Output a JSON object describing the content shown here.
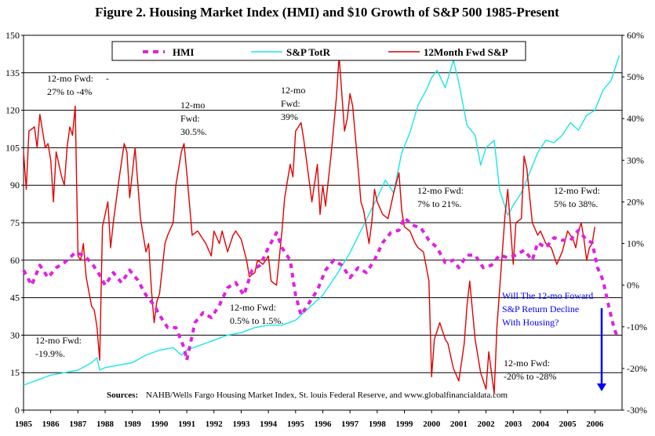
{
  "chart_data": {
    "type": "line",
    "title": "Figure 2.  Housing Market Index (HMI) and $10 Growth of S&P 500 1985-Present",
    "years": [
      "1985",
      "1986",
      "1987",
      "1988",
      "1989",
      "1990",
      "1991",
      "1992",
      "1993",
      "1994",
      "1995",
      "1996",
      "1997",
      "1998",
      "1999",
      "2000",
      "2001",
      "2002",
      "2003",
      "2004",
      "2005",
      "2006"
    ],
    "xlim": [
      1985,
      2007
    ],
    "y_left": {
      "ticks": [
        "0",
        "15",
        "30",
        "45",
        "60",
        "75",
        "90",
        "105",
        "120",
        "135",
        "150"
      ],
      "ylim": [
        0,
        150
      ]
    },
    "y_right": {
      "ticks": [
        "-30%",
        "-20%",
        "-10%",
        "0%",
        "10%",
        "20%",
        "30%",
        "40%",
        "50%",
        "60%"
      ],
      "ylim": [
        -30,
        60
      ]
    },
    "grid": "horizontal",
    "legend": {
      "placement": "top-center",
      "entries": [
        "HMI",
        "S&P TotR",
        "12Month Fwd S&P"
      ]
    },
    "series": [
      {
        "name": "HMI",
        "axis": "left",
        "color": "#e020e0",
        "style": "dashed",
        "points": [
          [
            1985.0,
            56
          ],
          [
            1985.3,
            50
          ],
          [
            1985.6,
            58
          ],
          [
            1985.9,
            53
          ],
          [
            1986.2,
            57
          ],
          [
            1986.5,
            59
          ],
          [
            1986.9,
            63
          ],
          [
            1987.2,
            62
          ],
          [
            1987.5,
            59
          ],
          [
            1987.8,
            54
          ],
          [
            1988.0,
            50
          ],
          [
            1988.3,
            55
          ],
          [
            1988.6,
            51
          ],
          [
            1988.9,
            56
          ],
          [
            1989.2,
            52
          ],
          [
            1989.5,
            46
          ],
          [
            1989.8,
            42
          ],
          [
            1990.0,
            38
          ],
          [
            1990.3,
            33
          ],
          [
            1990.6,
            33
          ],
          [
            1990.9,
            25
          ],
          [
            1991.0,
            20
          ],
          [
            1991.3,
            35
          ],
          [
            1991.6,
            39
          ],
          [
            1991.9,
            37
          ],
          [
            1992.2,
            42
          ],
          [
            1992.5,
            49
          ],
          [
            1992.8,
            51
          ],
          [
            1993.1,
            46
          ],
          [
            1993.4,
            56
          ],
          [
            1993.7,
            58
          ],
          [
            1994.0,
            65
          ],
          [
            1994.3,
            71
          ],
          [
            1994.5,
            65
          ],
          [
            1994.8,
            60
          ],
          [
            1995.0,
            46
          ],
          [
            1995.2,
            38
          ],
          [
            1995.5,
            43
          ],
          [
            1995.8,
            48
          ],
          [
            1996.1,
            56
          ],
          [
            1996.4,
            60
          ],
          [
            1996.7,
            58
          ],
          [
            1997.0,
            53
          ],
          [
            1997.3,
            57
          ],
          [
            1997.6,
            55
          ],
          [
            1997.9,
            60
          ],
          [
            1998.2,
            67
          ],
          [
            1998.5,
            71
          ],
          [
            1998.8,
            72
          ],
          [
            1999.0,
            77
          ],
          [
            1999.3,
            74
          ],
          [
            1999.6,
            73
          ],
          [
            1999.9,
            68
          ],
          [
            2000.2,
            65
          ],
          [
            2000.5,
            59
          ],
          [
            2000.8,
            60
          ],
          [
            2001.0,
            57
          ],
          [
            2001.3,
            62
          ],
          [
            2001.6,
            62
          ],
          [
            2001.9,
            57
          ],
          [
            2002.2,
            58
          ],
          [
            2002.5,
            62
          ],
          [
            2002.8,
            61
          ],
          [
            2003.1,
            62
          ],
          [
            2003.4,
            64
          ],
          [
            2003.7,
            60
          ],
          [
            2003.9,
            67
          ],
          [
            2004.2,
            65
          ],
          [
            2004.5,
            69
          ],
          [
            2004.8,
            68
          ],
          [
            2005.1,
            68
          ],
          [
            2005.4,
            72
          ],
          [
            2005.7,
            68
          ],
          [
            2005.9,
            67
          ],
          [
            2006.1,
            57
          ],
          [
            2006.3,
            52
          ],
          [
            2006.5,
            42
          ],
          [
            2006.7,
            33
          ],
          [
            2006.8,
            30
          ]
        ]
      },
      {
        "name": "S&P TotR",
        "axis": "left",
        "color": "#19e6e6",
        "style": "solid",
        "points": [
          [
            1985.0,
            10
          ],
          [
            1985.5,
            12
          ],
          [
            1986.0,
            14
          ],
          [
            1986.5,
            15
          ],
          [
            1987.0,
            16
          ],
          [
            1987.5,
            19
          ],
          [
            1987.7,
            21
          ],
          [
            1987.8,
            16
          ],
          [
            1988.0,
            17
          ],
          [
            1988.5,
            18
          ],
          [
            1989.0,
            19
          ],
          [
            1989.5,
            22
          ],
          [
            1990.0,
            24
          ],
          [
            1990.5,
            25
          ],
          [
            1990.8,
            22
          ],
          [
            1991.0,
            24
          ],
          [
            1991.5,
            26
          ],
          [
            1992.0,
            28
          ],
          [
            1992.5,
            30
          ],
          [
            1993.0,
            31
          ],
          [
            1993.5,
            33
          ],
          [
            1994.0,
            34
          ],
          [
            1994.5,
            34
          ],
          [
            1995.0,
            36
          ],
          [
            1995.5,
            41
          ],
          [
            1996.0,
            46
          ],
          [
            1996.5,
            54
          ],
          [
            1997.0,
            63
          ],
          [
            1997.5,
            74
          ],
          [
            1998.0,
            85
          ],
          [
            1998.3,
            92
          ],
          [
            1998.6,
            87
          ],
          [
            1998.9,
            103
          ],
          [
            1999.2,
            111
          ],
          [
            1999.5,
            122
          ],
          [
            1999.8,
            128
          ],
          [
            2000.0,
            133
          ],
          [
            2000.2,
            136
          ],
          [
            2000.5,
            129
          ],
          [
            2000.8,
            140
          ],
          [
            2001.0,
            131
          ],
          [
            2001.3,
            114
          ],
          [
            2001.6,
            110
          ],
          [
            2001.8,
            98
          ],
          [
            2002.0,
            105
          ],
          [
            2002.3,
            108
          ],
          [
            2002.5,
            88
          ],
          [
            2002.8,
            78
          ],
          [
            2003.0,
            82
          ],
          [
            2003.3,
            87
          ],
          [
            2003.6,
            95
          ],
          [
            2003.9,
            103
          ],
          [
            2004.2,
            108
          ],
          [
            2004.5,
            107
          ],
          [
            2004.8,
            110
          ],
          [
            2005.1,
            115
          ],
          [
            2005.4,
            112
          ],
          [
            2005.7,
            118
          ],
          [
            2006.0,
            120
          ],
          [
            2006.3,
            128
          ],
          [
            2006.6,
            132
          ],
          [
            2006.9,
            142
          ]
        ]
      },
      {
        "name": "12Month Fwd S&P",
        "axis": "right",
        "color": "#e00000",
        "style": "solid",
        "points": [
          [
            1985.0,
            32
          ],
          [
            1985.1,
            23
          ],
          [
            1985.2,
            37
          ],
          [
            1985.4,
            38
          ],
          [
            1985.5,
            33
          ],
          [
            1985.6,
            41
          ],
          [
            1985.8,
            33
          ],
          [
            1985.9,
            34
          ],
          [
            1986.0,
            30
          ],
          [
            1986.1,
            20
          ],
          [
            1986.2,
            32
          ],
          [
            1986.4,
            26
          ],
          [
            1986.5,
            24
          ],
          [
            1986.6,
            33
          ],
          [
            1986.7,
            38
          ],
          [
            1986.8,
            36
          ],
          [
            1986.9,
            43
          ],
          [
            1987.0,
            7
          ],
          [
            1987.1,
            6
          ],
          [
            1987.2,
            10
          ],
          [
            1987.3,
            2
          ],
          [
            1987.5,
            -5
          ],
          [
            1987.6,
            -6
          ],
          [
            1987.7,
            -10
          ],
          [
            1987.8,
            -18
          ],
          [
            1987.9,
            14
          ],
          [
            1988.1,
            20
          ],
          [
            1988.2,
            9
          ],
          [
            1988.3,
            15
          ],
          [
            1988.5,
            25
          ],
          [
            1988.7,
            34
          ],
          [
            1988.8,
            32
          ],
          [
            1988.9,
            21
          ],
          [
            1989.1,
            33
          ],
          [
            1989.3,
            16
          ],
          [
            1989.5,
            8
          ],
          [
            1989.6,
            10
          ],
          [
            1989.7,
            -1
          ],
          [
            1989.8,
            -9
          ],
          [
            1989.9,
            -4
          ],
          [
            1990.0,
            -2
          ],
          [
            1990.2,
            10
          ],
          [
            1990.3,
            12
          ],
          [
            1990.5,
            15
          ],
          [
            1990.6,
            24
          ],
          [
            1990.8,
            32
          ],
          [
            1990.9,
            34
          ],
          [
            1991.0,
            27
          ],
          [
            1991.2,
            12
          ],
          [
            1991.4,
            13
          ],
          [
            1991.5,
            12
          ],
          [
            1991.7,
            10
          ],
          [
            1991.9,
            7
          ],
          [
            1992.0,
            13
          ],
          [
            1992.2,
            10
          ],
          [
            1992.3,
            13
          ],
          [
            1992.5,
            8
          ],
          [
            1992.7,
            12
          ],
          [
            1992.8,
            13
          ],
          [
            1993.0,
            11
          ],
          [
            1993.2,
            6
          ],
          [
            1993.3,
            2
          ],
          [
            1993.5,
            3
          ],
          [
            1993.6,
            6
          ],
          [
            1993.8,
            5
          ],
          [
            1994.0,
            7
          ],
          [
            1994.1,
            1
          ],
          [
            1994.3,
            0
          ],
          [
            1994.5,
            13
          ],
          [
            1994.6,
            21
          ],
          [
            1994.8,
            29
          ],
          [
            1994.9,
            26
          ],
          [
            1995.0,
            37
          ],
          [
            1995.2,
            39
          ],
          [
            1995.3,
            35
          ],
          [
            1995.4,
            30
          ],
          [
            1995.6,
            20
          ],
          [
            1995.8,
            29
          ],
          [
            1995.9,
            17
          ],
          [
            1996.0,
            24
          ],
          [
            1996.1,
            19
          ],
          [
            1996.3,
            31
          ],
          [
            1996.4,
            38
          ],
          [
            1996.5,
            45
          ],
          [
            1996.6,
            55
          ],
          [
            1996.8,
            37
          ],
          [
            1996.9,
            40
          ],
          [
            1997.0,
            46
          ],
          [
            1997.1,
            43
          ],
          [
            1997.3,
            28
          ],
          [
            1997.4,
            20
          ],
          [
            1997.5,
            18
          ],
          [
            1997.7,
            10
          ],
          [
            1997.8,
            15
          ],
          [
            1997.9,
            23
          ],
          [
            1998.0,
            20
          ],
          [
            1998.2,
            17
          ],
          [
            1998.4,
            16
          ],
          [
            1998.6,
            22
          ],
          [
            1998.8,
            27
          ],
          [
            1998.9,
            18
          ],
          [
            1999.0,
            14
          ],
          [
            1999.2,
            13
          ],
          [
            1999.4,
            10
          ],
          [
            1999.5,
            9
          ],
          [
            1999.7,
            8
          ],
          [
            1999.9,
            1
          ],
          [
            2000.0,
            -22
          ],
          [
            2000.1,
            -13
          ],
          [
            2000.2,
            -11
          ],
          [
            2000.3,
            -9
          ],
          [
            2000.5,
            -13
          ],
          [
            2000.6,
            -14
          ],
          [
            2000.8,
            -20
          ],
          [
            2001.0,
            -23
          ],
          [
            2001.2,
            -14
          ],
          [
            2001.3,
            -5
          ],
          [
            2001.4,
            1
          ],
          [
            2001.6,
            -13
          ],
          [
            2001.8,
            -21
          ],
          [
            2002.0,
            -25
          ],
          [
            2002.1,
            -16
          ],
          [
            2002.3,
            -26
          ],
          [
            2002.4,
            -10
          ],
          [
            2002.6,
            8
          ],
          [
            2002.7,
            17
          ],
          [
            2002.8,
            23
          ],
          [
            2003.0,
            5
          ],
          [
            2003.1,
            15
          ],
          [
            2003.3,
            16
          ],
          [
            2003.4,
            31
          ],
          [
            2003.5,
            28
          ],
          [
            2003.7,
            15
          ],
          [
            2003.9,
            12
          ],
          [
            2004.0,
            13
          ],
          [
            2004.2,
            10
          ],
          [
            2004.4,
            9
          ],
          [
            2004.6,
            5
          ],
          [
            2004.8,
            8
          ],
          [
            2005.0,
            13
          ],
          [
            2005.2,
            11
          ],
          [
            2005.3,
            9
          ],
          [
            2005.4,
            13
          ],
          [
            2005.5,
            15
          ],
          [
            2005.6,
            11
          ],
          [
            2005.7,
            6
          ],
          [
            2005.8,
            9
          ],
          [
            2005.9,
            10
          ],
          [
            2006.0,
            14
          ]
        ]
      }
    ]
  },
  "annotations": [
    "12-mo Fwd:",
    "-",
    "27% to -4%",
    "12-mo",
    "Fwd:",
    "30.5%.",
    "12-mo",
    "Fwd:",
    "39%",
    "12-mo Fwd:",
    "7% to 21%.",
    "12-mo Fwd:",
    "5% to 38%.",
    "12-mo Fwd:",
    "0.5% to 1.5%.",
    "12-mo Fwd:",
    "-19.9%.",
    "12-mo Fwd:",
    "-20% to -28%"
  ],
  "callout": {
    "lines": [
      "Will The 12-mo Foward",
      "S&P Return Decline",
      "With Housing?"
    ],
    "color": "#0000ff"
  },
  "source": {
    "label": "Sources:",
    "text": "NAHB/Wells Fargo Housing Market Index, St. louis Federal Reserve, and www.globalfinancialdata.com"
  }
}
